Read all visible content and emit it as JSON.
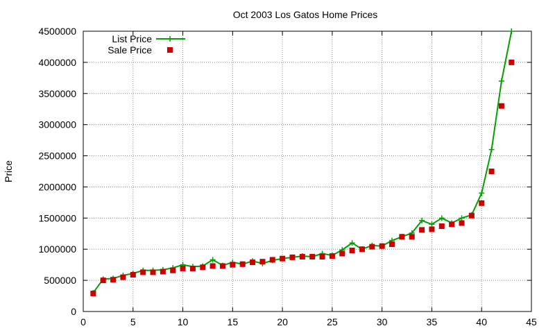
{
  "chart_data": {
    "type": "line",
    "title": "Oct 2003 Los Gatos Home Prices",
    "xlabel": "",
    "ylabel": "Price",
    "xlim": [
      0,
      45
    ],
    "ylim": [
      0,
      4500000
    ],
    "xticks": [
      0,
      5,
      10,
      15,
      20,
      25,
      30,
      35,
      40,
      45
    ],
    "yticks": [
      0,
      500000,
      1000000,
      1500000,
      2000000,
      2500000,
      3000000,
      3500000,
      4000000,
      4500000
    ],
    "grid": true,
    "legend_position": "top-left",
    "x": [
      1,
      2,
      3,
      4,
      5,
      6,
      7,
      8,
      9,
      10,
      11,
      12,
      13,
      14,
      15,
      16,
      17,
      18,
      19,
      20,
      21,
      22,
      23,
      24,
      25,
      26,
      27,
      28,
      29,
      30,
      31,
      32,
      33,
      34,
      35,
      36,
      37,
      38,
      39,
      40,
      41,
      42,
      43
    ],
    "series": [
      {
        "name": "List Price",
        "style": "line+cross",
        "color": "#00a000",
        "values": [
          300000,
          520000,
          530000,
          580000,
          610000,
          660000,
          660000,
          670000,
          700000,
          750000,
          720000,
          730000,
          830000,
          740000,
          790000,
          760000,
          810000,
          770000,
          820000,
          850000,
          870000,
          890000,
          880000,
          930000,
          900000,
          990000,
          1100000,
          1000000,
          1060000,
          1050000,
          1140000,
          1200000,
          1260000,
          1460000,
          1400000,
          1500000,
          1420000,
          1500000,
          1550000,
          1900000,
          2600000,
          3700000,
          4500000
        ]
      },
      {
        "name": "Sale Price",
        "style": "square",
        "color": "#cc0000",
        "values": [
          290000,
          500000,
          510000,
          550000,
          590000,
          630000,
          630000,
          640000,
          660000,
          690000,
          690000,
          710000,
          730000,
          730000,
          750000,
          760000,
          790000,
          800000,
          830000,
          850000,
          870000,
          880000,
          880000,
          880000,
          890000,
          930000,
          980000,
          1000000,
          1040000,
          1050000,
          1080000,
          1200000,
          1200000,
          1310000,
          1320000,
          1370000,
          1400000,
          1420000,
          1540000,
          1740000,
          2250000,
          3300000,
          4000000
        ]
      }
    ]
  }
}
